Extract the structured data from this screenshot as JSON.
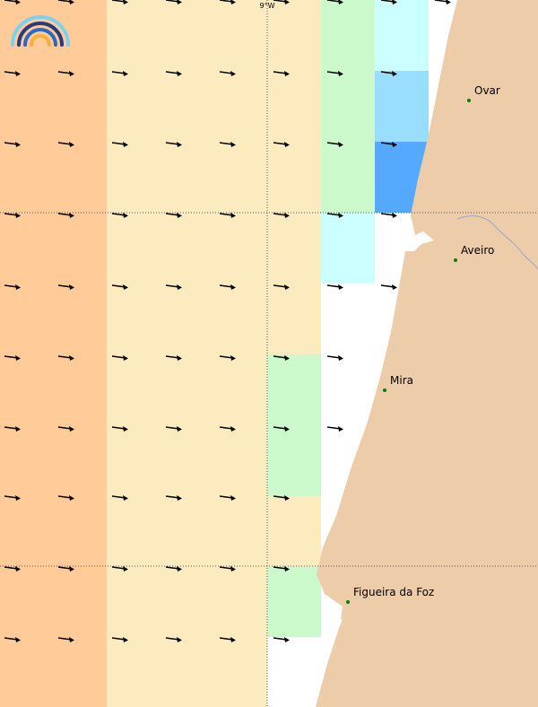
{
  "map": {
    "meridian_label": "9°W",
    "places": [
      {
        "label": "Ovar"
      },
      {
        "label": "Aveiro"
      },
      {
        "label": "Mira"
      },
      {
        "label": "Figueira da Foz"
      }
    ]
  }
}
